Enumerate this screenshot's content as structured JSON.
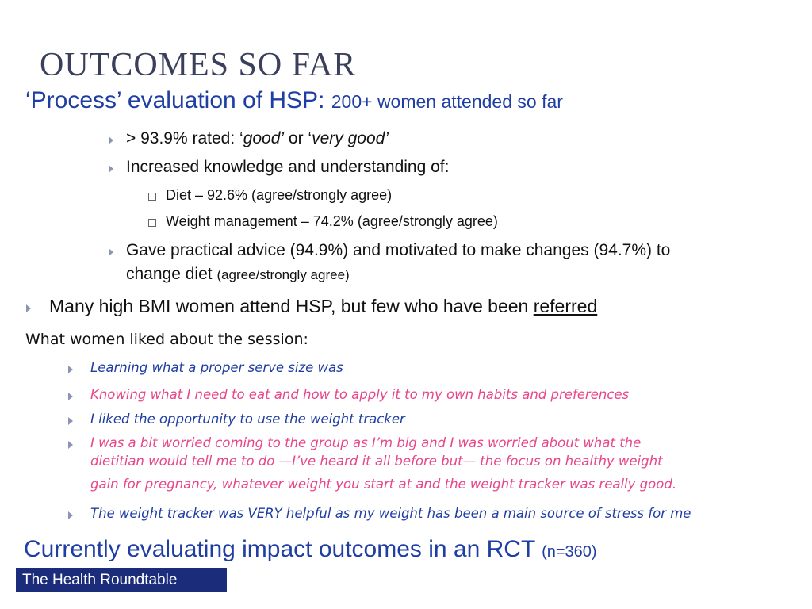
{
  "title": "OUTCOMES SO FAR",
  "process": {
    "heading": "‘Process’ evaluation of HSP:",
    "heading_small": "200+ women attended so far",
    "rated": {
      "prefix": "> 93.9% rated: ‘",
      "good": "good’",
      "or": " or ‘",
      "very_good": "very good’"
    },
    "knowledge": "Increased knowledge and understanding of:",
    "diet": "Diet – 92.6% (agree/strongly agree)",
    "weight": "Weight management – 74.2% (agree/strongly agree)",
    "advice_line1": "Gave practical advice (94.9%) and motivated to make changes (94.7%) to",
    "advice_line2": "change diet",
    "advice_small": "(agree/strongly agree)"
  },
  "bmi": {
    "text": "Many high BMI women attend HSP, but few who have been ",
    "underlined": "referred"
  },
  "liked_heading": "What women liked about the session:",
  "quotes": [
    {
      "lines": [
        "Learning what a proper serve size was"
      ],
      "color": "#1f3ea3"
    },
    {
      "lines": [
        "Knowing what I need to eat and how to apply it to my own habits and preferences"
      ],
      "color": "#e8468a"
    },
    {
      "lines": [
        "I liked the opportunity to use the weight tracker"
      ],
      "color": "#1f3ea3"
    },
    {
      "lines": [
        "I was a bit worried coming to the group as I’m big and I was worried about what the",
        "dietitian would tell me to do —I’ve heard it all before but— the focus on healthy weight",
        "gain for pregnancy, whatever weight you start at and the weight tracker was really good."
      ],
      "color": "#e8468a"
    },
    {
      "lines": [
        "The weight tracker was VERY helpful as my weight has been a main source of stress for me"
      ],
      "color": "#1f3ea3"
    }
  ],
  "rct": {
    "text": "Currently evaluating impact outcomes in an RCT",
    "small": "(n=360)"
  },
  "footer": "The Health Roundtable",
  "colors": {
    "title": "#3a3f5c",
    "accent_blue": "#1f3ea3",
    "quote_pink": "#e8468a",
    "footer_bg": "#1b2c7a",
    "bullet": "#8c94b4"
  }
}
